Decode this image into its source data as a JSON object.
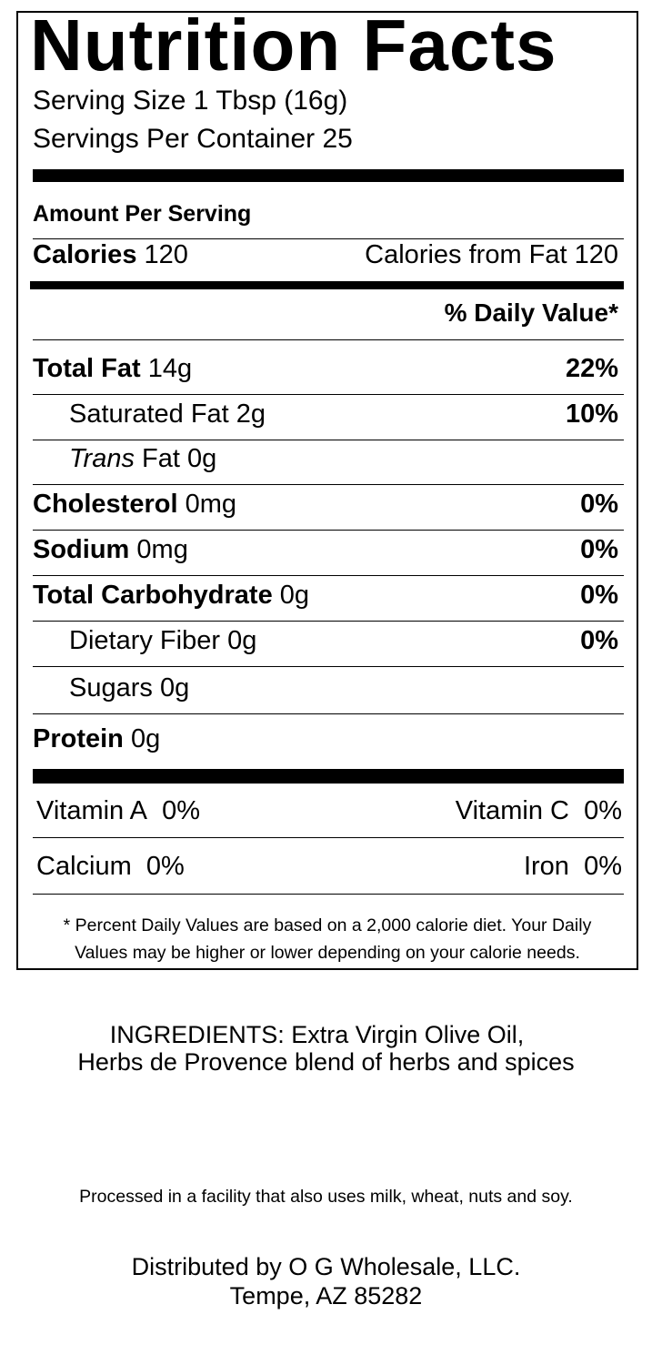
{
  "label": {
    "title": "Nutrition Facts",
    "serving_size": "Serving Size 1 Tbsp (16g)",
    "servings_per_container": "Servings Per Container 25",
    "amount_per_serving": "Amount Per Serving",
    "calories_label": "Calories",
    "calories_value": "120",
    "calories_from_fat": "Calories from Fat 120",
    "daily_value_header": "% Daily Value*",
    "nutrients": [
      {
        "label": "Total Fat",
        "amount": "14g",
        "dv": "22%"
      },
      {
        "label": "Saturated Fat",
        "amount": "2g",
        "dv": "10%"
      },
      {
        "label": "Trans",
        "label_rest": "Fat",
        "amount": "0g",
        "dv": ""
      },
      {
        "label": "Cholesterol",
        "amount": "0mg",
        "dv": "0%"
      },
      {
        "label": "Sodium",
        "amount": "0mg",
        "dv": "0%"
      },
      {
        "label": "Total Carbohydrate",
        "amount": "0g",
        "dv": "0%"
      },
      {
        "label": "Dietary Fiber",
        "amount": "0g",
        "dv": "0%"
      },
      {
        "label": "Sugars",
        "amount": "0g",
        "dv": ""
      },
      {
        "label": "Protein",
        "amount": "0g",
        "dv": ""
      }
    ],
    "vitamins": [
      {
        "label": "Vitamin A",
        "value": "0%"
      },
      {
        "label": "Vitamin C",
        "value": "0%"
      },
      {
        "label": "Calcium",
        "value": "0%"
      },
      {
        "label": "Iron",
        "value": "0%"
      }
    ],
    "footnote_line1": "* Percent Daily Values are based on a 2,000 calorie diet. Your Daily",
    "footnote_line2": "Values may be higher or lower depending on your calorie needs."
  },
  "ingredients": {
    "line1": "INGREDIENTS: Extra Virgin Olive Oil,",
    "line2": "Herbs de Provence blend of herbs and spices"
  },
  "allergen_notice": "Processed in a facility that also uses milk, wheat, nuts and soy.",
  "distributor": {
    "line1": "Distributed by O G Wholesale, LLC.",
    "line2": "Tempe, AZ 85282"
  }
}
